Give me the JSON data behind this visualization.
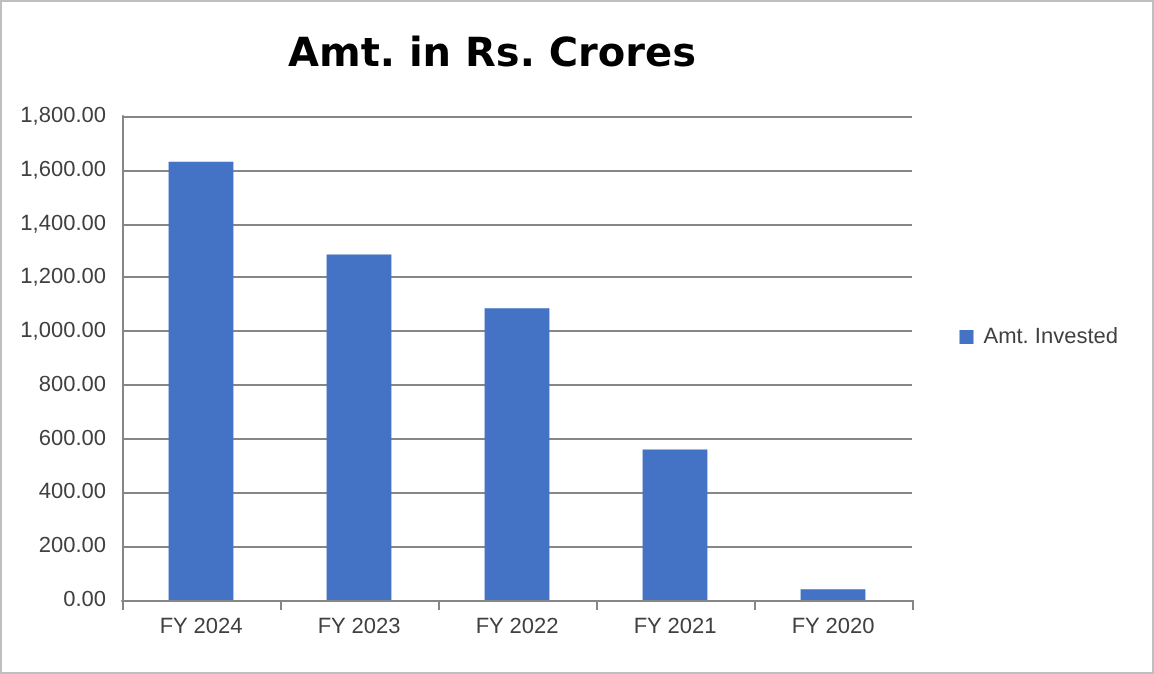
{
  "chart_data": {
    "type": "bar",
    "title": "Amt. in Rs. Crores",
    "categories": [
      "FY 2024",
      "FY 2023",
      "FY 2022",
      "FY 2021",
      "FY 2020"
    ],
    "series": [
      {
        "name": "Amt. Invested",
        "color": "#4472c4",
        "values": [
          1630,
          1285,
          1085,
          560,
          40
        ]
      }
    ],
    "ylim": [
      0,
      1800
    ],
    "yticks": [
      {
        "value": 0,
        "label": "0.00"
      },
      {
        "value": 200,
        "label": "200.00"
      },
      {
        "value": 400,
        "label": "400.00"
      },
      {
        "value": 600,
        "label": "600.00"
      },
      {
        "value": 800,
        "label": "800.00"
      },
      {
        "value": 1000,
        "label": "1,000.00"
      },
      {
        "value": 1200,
        "label": "1,200.00"
      },
      {
        "value": 1400,
        "label": "1,400.00"
      },
      {
        "value": 1600,
        "label": "1,600.00"
      },
      {
        "value": 1800,
        "label": "1,800.00"
      }
    ],
    "grid": "y",
    "legend": "right"
  }
}
